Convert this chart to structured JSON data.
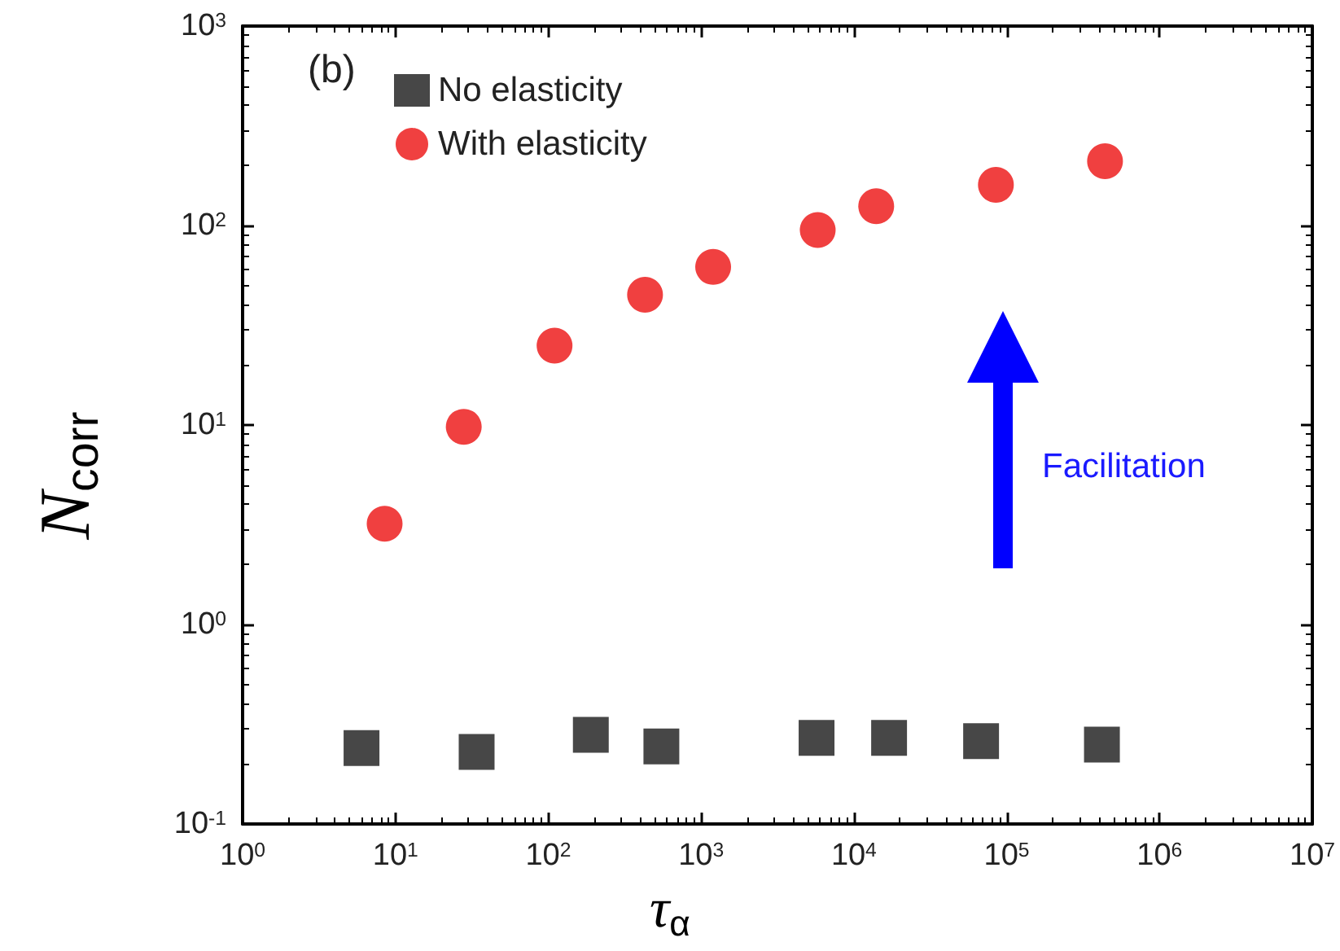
{
  "chart_data": {
    "type": "scatter",
    "log": "xy",
    "xlabel": "τ$_{α}$",
    "ylabel": "N$_{corr}$",
    "xlim": [
      1,
      10000000
    ],
    "ylim": [
      0.1,
      1000
    ],
    "xticks": [
      {
        "value": 1,
        "label": "10$^{0}$"
      },
      {
        "value": 10,
        "label": "10$^{1}$"
      },
      {
        "value": 100,
        "label": "10$^{2}$"
      },
      {
        "value": 1000,
        "label": "10$^{3}$"
      },
      {
        "value": 10000,
        "label": "10$^{4}$"
      },
      {
        "value": 100000,
        "label": "10$^{5}$"
      },
      {
        "value": 1000000,
        "label": "10$^{6}$"
      },
      {
        "value": 10000000,
        "label": "10$^{7}$"
      }
    ],
    "yticks": [
      {
        "value": 0.1,
        "label": "10$^{-1}$"
      },
      {
        "value": 1,
        "label": "10$^{0}$"
      },
      {
        "value": 10,
        "label": "10$^{1}$"
      },
      {
        "value": 100,
        "label": "10$^{2}$"
      },
      {
        "value": 1000,
        "label": "10$^{3}$"
      }
    ],
    "legend": "top left",
    "grid": false,
    "annotations": [
      "(b)",
      "Facilitation"
    ],
    "series": [
      {
        "name": "No elasticity",
        "color": "#474747",
        "marker": "square",
        "x": [
          6,
          34,
          190,
          550,
          5700,
          17000,
          68000,
          420000
        ],
        "values": [
          0.24,
          0.23,
          0.28,
          0.245,
          0.27,
          0.27,
          0.26,
          0.25
        ]
      },
      {
        "name": "With elasticity",
        "color": "#f04040",
        "marker": "circle",
        "x": [
          8.5,
          28,
          110,
          430,
          1200,
          5800,
          14000,
          85000,
          440000
        ],
        "values": [
          3.2,
          9.8,
          25,
          45,
          62,
          95,
          125,
          160,
          210
        ]
      }
    ]
  }
}
